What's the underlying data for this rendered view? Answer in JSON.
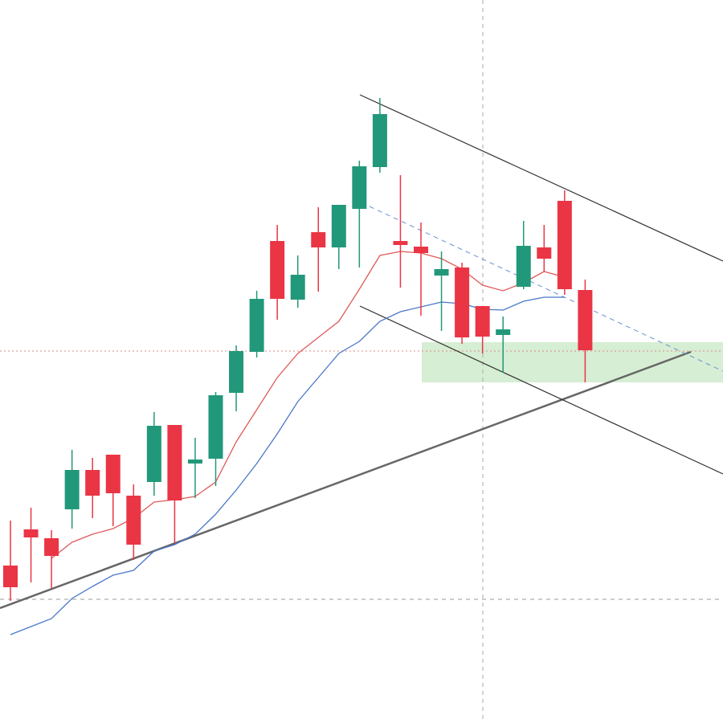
{
  "chart_data": {
    "type": "candlestick",
    "categories": [
      null,
      null,
      null,
      null,
      null,
      null,
      null,
      null,
      null,
      null,
      null,
      null,
      null,
      null,
      null,
      null,
      null,
      null,
      null,
      null,
      null,
      null,
      null,
      null,
      null,
      null,
      null,
      null,
      null
    ],
    "open": [
      196,
      241,
      230,
      266,
      315,
      334,
      283,
      300,
      371,
      323,
      329,
      411,
      462,
      600,
      527,
      611,
      592,
      640,
      692,
      600,
      593,
      557,
      567,
      519,
      483,
      543,
      592,
      650,
      539
    ],
    "high": [
      252,
      268,
      240,
      340,
      330,
      334,
      297,
      387,
      371,
      355,
      412,
      470,
      538,
      620,
      582,
      642,
      645,
      700,
      778,
      682,
      623,
      587,
      573,
      519,
      506,
      625,
      620,
      663,
      552
    ],
    "low": [
      152,
      175,
      168,
      242,
      255,
      245,
      203,
      283,
      224,
      280,
      295,
      388,
      455,
      502,
      517,
      537,
      565,
      567,
      685,
      542,
      507,
      488,
      472,
      460,
      436,
      540,
      562,
      533,
      424
    ],
    "close": [
      169,
      231,
      208,
      315,
      283,
      286,
      222,
      370,
      277,
      328,
      408,
      463,
      528,
      528,
      558,
      592,
      645,
      693,
      758,
      595,
      585,
      565,
      480,
      481,
      490,
      594,
      578,
      540,
      464
    ],
    "up_color": "#22987a",
    "down_color": "#ea3545",
    "series": [
      {
        "color": "#e05a5a",
        "values": [
          null,
          null,
          205,
          225,
          235,
          242,
          255,
          275,
          278,
          282,
          300,
          350,
          390,
          430,
          460,
          480,
          500,
          540,
          582,
          587,
          585,
          578,
          565,
          545,
          538,
          548,
          562,
          555,
          null
        ]
      },
      {
        "color": "#4a78c8",
        "values": [
          110,
          120,
          130,
          155,
          170,
          184,
          190,
          214,
          222,
          235,
          260,
          290,
          323,
          360,
          400,
          430,
          460,
          475,
          500,
          512,
          518,
          524,
          522,
          515,
          514,
          525,
          530,
          530,
          null
        ]
      }
    ],
    "ylim": [
      0,
      900
    ]
  }
}
